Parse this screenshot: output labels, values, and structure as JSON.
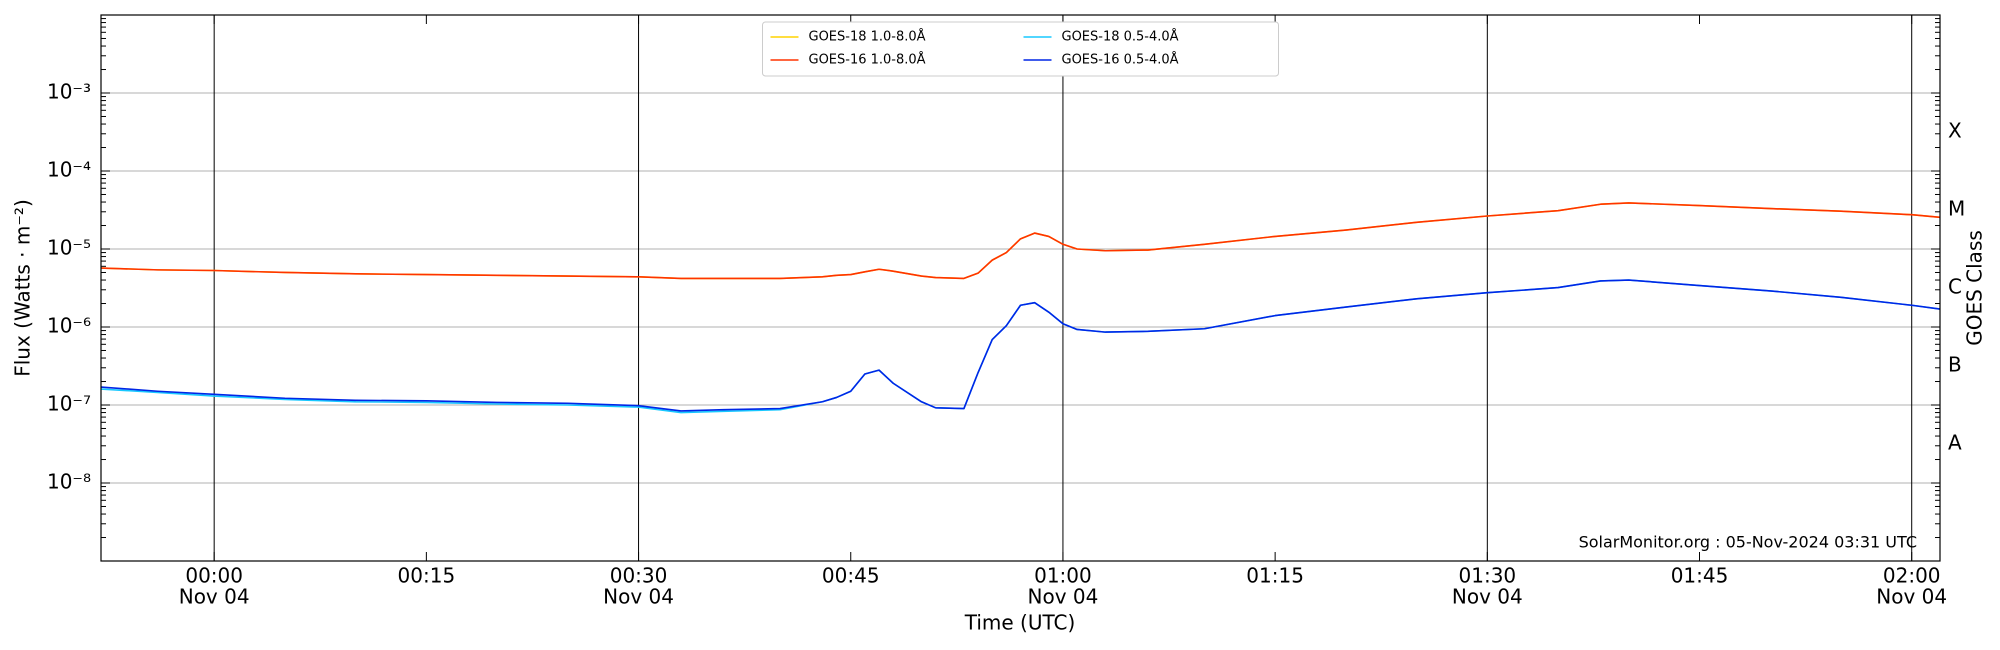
{
  "chart_data": {
    "type": "line",
    "xlabel": "Time (UTC)",
    "ylabel": "Flux (Watts · m⁻²)",
    "y2label": "GOES Class",
    "annotation": "SolarMonitor.org : 05-Nov-2024 03:31 UTC",
    "log_y": true,
    "grid": true,
    "legend": "upper center",
    "legend_columns": 2,
    "x": [
      "Nov 03 23:52",
      "Nov 03 23:56",
      "Nov 04 00:00",
      "Nov 04 00:05",
      "Nov 04 00:10",
      "Nov 04 00:15",
      "Nov 04 00:20",
      "Nov 04 00:25",
      "Nov 04 00:30",
      "Nov 04 00:33",
      "Nov 04 00:36",
      "Nov 04 00:40",
      "Nov 04 00:43",
      "Nov 04 00:44",
      "Nov 04 00:45",
      "Nov 04 00:46",
      "Nov 04 00:47",
      "Nov 04 00:48",
      "Nov 04 00:50",
      "Nov 04 00:51",
      "Nov 04 00:53",
      "Nov 04 00:54",
      "Nov 04 00:55",
      "Nov 04 00:56",
      "Nov 04 00:57",
      "Nov 04 00:58",
      "Nov 04 00:59",
      "Nov 04 01:00",
      "Nov 04 01:01",
      "Nov 04 01:03",
      "Nov 04 01:06",
      "Nov 04 01:10",
      "Nov 04 01:15",
      "Nov 04 01:20",
      "Nov 04 01:25",
      "Nov 04 01:30",
      "Nov 04 01:35",
      "Nov 04 01:38",
      "Nov 04 01:40",
      "Nov 04 01:45",
      "Nov 04 01:50",
      "Nov 04 01:55",
      "Nov 04 02:00",
      "Nov 04 02:02"
    ],
    "series": [
      {
        "name": "GOES-18 1.0-8.0Å",
        "color": "#ffd400",
        "values": [
          5.7e-06,
          5.4e-06,
          5.3e-06,
          5e-06,
          4.8e-06,
          4.7e-06,
          4.6e-06,
          4.5e-06,
          4.4e-06,
          4.2e-06,
          4.2e-06,
          4.2e-06,
          4.4e-06,
          4.6e-06,
          4.7e-06,
          5.1e-06,
          5.5e-06,
          5.2e-06,
          4.5e-06,
          4.3e-06,
          4.2e-06,
          4.9e-06,
          7.2e-06,
          9e-06,
          1.35e-05,
          1.6e-05,
          1.45e-05,
          1.15e-05,
          1e-05,
          9.5e-06,
          9.7e-06,
          1.15e-05,
          1.45e-05,
          1.75e-05,
          2.2e-05,
          2.65e-05,
          3.1e-05,
          3.75e-05,
          3.9e-05,
          3.6e-05,
          3.3e-05,
          3.05e-05,
          2.75e-05,
          2.55e-05
        ]
      },
      {
        "name": "GOES-16 1.0-8.0Å",
        "color": "#ff3300",
        "values": [
          5.7e-06,
          5.4e-06,
          5.3e-06,
          5e-06,
          4.8e-06,
          4.7e-06,
          4.6e-06,
          4.5e-06,
          4.4e-06,
          4.2e-06,
          4.2e-06,
          4.2e-06,
          4.4e-06,
          4.6e-06,
          4.7e-06,
          5.1e-06,
          5.5e-06,
          5.2e-06,
          4.5e-06,
          4.3e-06,
          4.2e-06,
          4.9e-06,
          7.2e-06,
          9e-06,
          1.35e-05,
          1.6e-05,
          1.45e-05,
          1.15e-05,
          1e-05,
          9.5e-06,
          9.7e-06,
          1.15e-05,
          1.45e-05,
          1.75e-05,
          2.2e-05,
          2.65e-05,
          3.1e-05,
          3.75e-05,
          3.9e-05,
          3.6e-05,
          3.3e-05,
          3.05e-05,
          2.75e-05,
          2.55e-05
        ]
      },
      {
        "name": "GOES-18 0.5-4.0Å",
        "color": "#18c8ff",
        "values": [
          1.6e-07,
          1.45e-07,
          1.3e-07,
          1.18e-07,
          1.1e-07,
          1.08e-07,
          1.03e-07,
          1e-07,
          9.4e-08,
          8e-08,
          8.3e-08,
          8.7e-08,
          1.1e-07,
          1.25e-07,
          1.5e-07,
          2.5e-07,
          2.8e-07,
          1.9e-07,
          1.1e-07,
          9.2e-08,
          9e-08,
          2.6e-07,
          6.9e-07,
          1.04e-06,
          1.9e-06,
          2.05e-06,
          1.55e-06,
          1.1e-06,
          9.3e-07,
          8.6e-07,
          8.8e-07,
          9.5e-07,
          1.4e-06,
          1.8e-06,
          2.3e-06,
          2.75e-06,
          3.2e-06,
          3.9e-06,
          4e-06,
          3.4e-06,
          2.9e-06,
          2.4e-06,
          1.9e-06,
          1.7e-06
        ]
      },
      {
        "name": "GOES-16 0.5-4.0Å",
        "color": "#0026e6",
        "values": [
          1.7e-07,
          1.5e-07,
          1.37e-07,
          1.22e-07,
          1.15e-07,
          1.13e-07,
          1.08e-07,
          1.05e-07,
          9.8e-08,
          8.4e-08,
          8.7e-08,
          9e-08,
          1.1e-07,
          1.25e-07,
          1.5e-07,
          2.5e-07,
          2.8e-07,
          1.9e-07,
          1.1e-07,
          9.2e-08,
          9e-08,
          2.6e-07,
          6.9e-07,
          1.04e-06,
          1.9e-06,
          2.05e-06,
          1.55e-06,
          1.1e-06,
          9.3e-07,
          8.6e-07,
          8.8e-07,
          9.5e-07,
          1.4e-06,
          1.8e-06,
          2.3e-06,
          2.75e-06,
          3.2e-06,
          3.9e-06,
          4e-06,
          3.4e-06,
          2.9e-06,
          2.4e-06,
          1.9e-06,
          1.7e-06
        ]
      }
    ],
    "xlim": [
      "Nov 03 23:52",
      "Nov 04 02:02"
    ],
    "xticks": [
      {
        "value": "Nov 04 00:00",
        "label": [
          "00:00",
          "Nov 04"
        ]
      },
      {
        "value": "Nov 04 00:15",
        "label": [
          "00:15"
        ]
      },
      {
        "value": "Nov 04 00:30",
        "label": [
          "00:30",
          "Nov 04"
        ]
      },
      {
        "value": "Nov 04 00:45",
        "label": [
          "00:45"
        ]
      },
      {
        "value": "Nov 04 01:00",
        "label": [
          "01:00",
          "Nov 04"
        ]
      },
      {
        "value": "Nov 04 01:15",
        "label": [
          "01:15"
        ]
      },
      {
        "value": "Nov 04 01:30",
        "label": [
          "01:30",
          "Nov 04"
        ]
      },
      {
        "value": "Nov 04 01:45",
        "label": [
          "01:45"
        ]
      },
      {
        "value": "Nov 04 02:00",
        "label": [
          "02:00",
          "Nov 04"
        ]
      }
    ],
    "xgrid_at": [
      "Nov 04 00:00",
      "Nov 04 00:30",
      "Nov 04 01:00",
      "Nov 04 01:30",
      "Nov 04 02:00"
    ],
    "ylim": [
      1e-09,
      0.01
    ],
    "yticks": [
      {
        "value": 1e-08,
        "label": "10⁻⁸"
      },
      {
        "value": 1e-07,
        "label": "10⁻⁷"
      },
      {
        "value": 1e-06,
        "label": "10⁻⁶"
      },
      {
        "value": 1e-05,
        "label": "10⁻⁵"
      },
      {
        "value": 0.0001,
        "label": "10⁻⁴"
      },
      {
        "value": 0.001,
        "label": "10⁻³"
      }
    ],
    "y2lim": [
      1e-09,
      0.01
    ],
    "y2ticks": [
      {
        "value": 3.16e-08,
        "label": "A"
      },
      {
        "value": 3.16e-07,
        "label": "B"
      },
      {
        "value": 3.16e-06,
        "label": "C"
      },
      {
        "value": 3.16e-05,
        "label": "M"
      },
      {
        "value": 0.000316,
        "label": "X"
      }
    ]
  }
}
